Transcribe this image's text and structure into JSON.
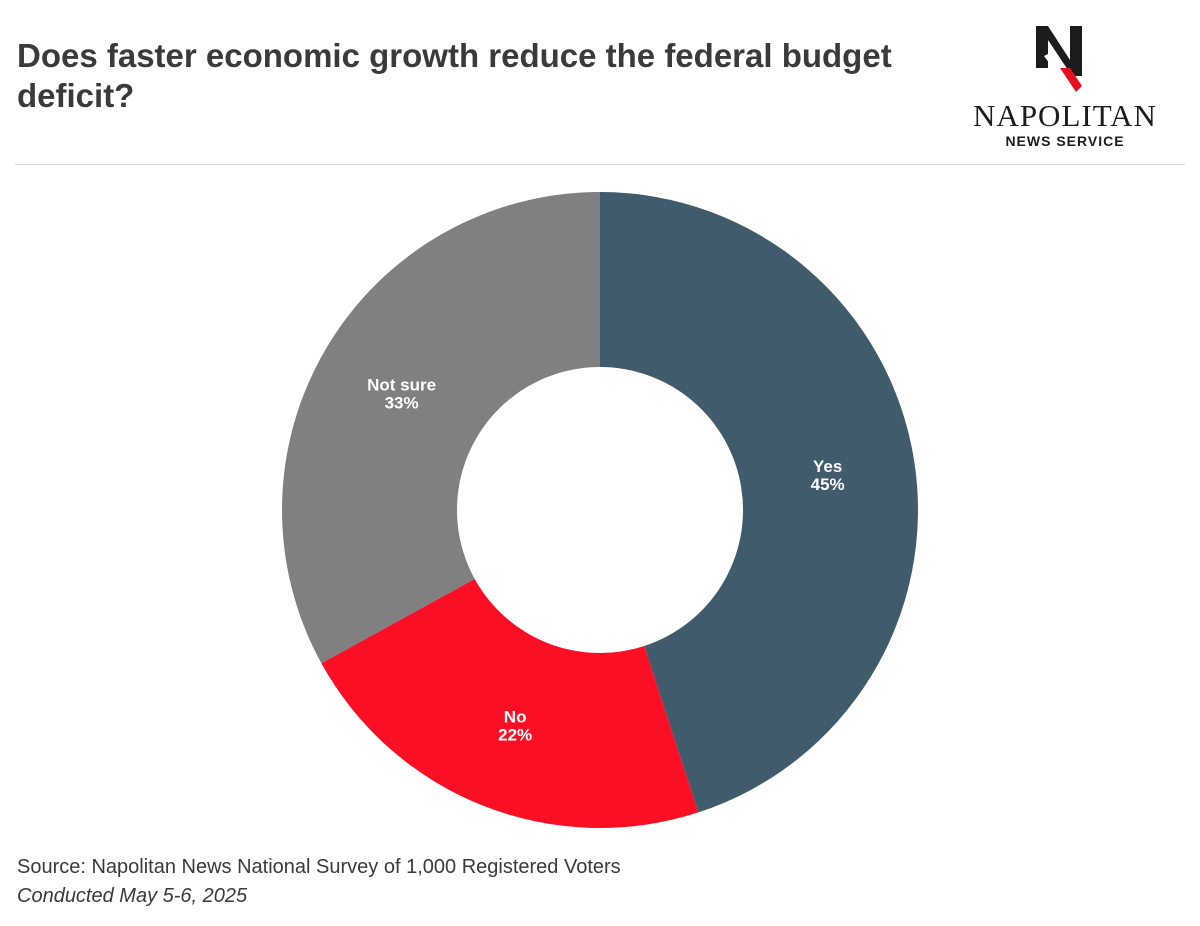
{
  "header": {
    "title": "Does faster economic growth reduce the federal budget deficit?"
  },
  "logo": {
    "name": "NAPOLITAN",
    "subtitle": "NEWS SERVICE",
    "mark_letter": "N"
  },
  "chart_data": {
    "type": "pie",
    "style": "donut",
    "categories": [
      "Yes",
      "No",
      "Not sure"
    ],
    "values": [
      45,
      22,
      33
    ],
    "value_labels": [
      "45%",
      "22%",
      "33%"
    ],
    "colors": [
      "#3f5b6c",
      "#fb0f24",
      "#808080"
    ],
    "start": "12 o'clock",
    "direction": "clockwise"
  },
  "footer": {
    "source": "Source: Napolitan News National Survey of 1,000 Registered Voters",
    "conducted": "Conducted May 5-6, 2025"
  }
}
